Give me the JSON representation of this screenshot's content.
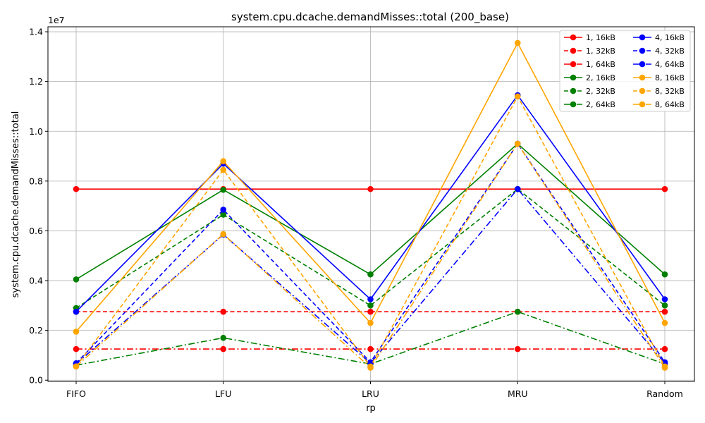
{
  "chart_data": {
    "type": "line",
    "title": "system.cpu.dcache.demandMisses::total (200_base)",
    "xlabel": "rp",
    "ylabel": "system.cpu.dcache.demandMisses::total",
    "scale_label": "1e7",
    "categories": [
      "FIFO",
      "LFU",
      "LRU",
      "MRU",
      "Random"
    ],
    "ylim": [
      -0.05,
      14.2
    ],
    "yticks": [
      0.0,
      0.2,
      0.4,
      0.6,
      0.8,
      1.0,
      1.2,
      1.4
    ],
    "yticks_units": [
      0,
      2,
      4,
      6,
      8,
      10,
      12,
      14
    ],
    "grid": true,
    "legend_position": "top-right",
    "legend_columns": 2,
    "series": [
      {
        "name": "1, 16kB",
        "color": "#ff0000",
        "dash": "solid",
        "values": [
          7.68,
          7.68,
          7.68,
          7.68,
          7.68
        ]
      },
      {
        "name": "1, 32kB",
        "color": "#ff0000",
        "dash": "dashed",
        "values": [
          2.75,
          2.75,
          2.75,
          2.75,
          2.75
        ]
      },
      {
        "name": "1, 64kB",
        "color": "#ff0000",
        "dash": "dashdot",
        "values": [
          1.25,
          1.25,
          1.25,
          1.25,
          1.25
        ]
      },
      {
        "name": "2, 16kB",
        "color": "#008000",
        "dash": "solid",
        "values": [
          4.05,
          7.65,
          4.25,
          9.5,
          4.25
        ]
      },
      {
        "name": "2, 32kB",
        "color": "#008000",
        "dash": "dashed",
        "values": [
          2.9,
          6.65,
          3.0,
          7.68,
          3.0
        ]
      },
      {
        "name": "2, 64kB",
        "color": "#008000",
        "dash": "dashdot",
        "values": [
          0.6,
          1.7,
          0.65,
          2.75,
          0.65
        ]
      },
      {
        "name": "4, 16kB",
        "color": "#0000ff",
        "dash": "solid",
        "values": [
          2.75,
          8.7,
          3.25,
          11.45,
          3.25
        ]
      },
      {
        "name": "4, 32kB",
        "color": "#0000ff",
        "dash": "dashed",
        "values": [
          0.68,
          6.85,
          0.72,
          9.5,
          0.72
        ]
      },
      {
        "name": "4, 64kB",
        "color": "#0000ff",
        "dash": "dashdot",
        "values": [
          0.65,
          5.85,
          0.68,
          7.68,
          0.68
        ]
      },
      {
        "name": "8, 16kB",
        "color": "#ffa500",
        "dash": "solid",
        "values": [
          1.95,
          8.8,
          2.3,
          13.55,
          2.3
        ]
      },
      {
        "name": "8, 32kB",
        "color": "#ffa500",
        "dash": "dashed",
        "values": [
          0.55,
          8.45,
          0.55,
          11.4,
          0.55
        ]
      },
      {
        "name": "8, 64kB",
        "color": "#ffa500",
        "dash": "dashdot",
        "values": [
          0.55,
          5.87,
          0.5,
          9.5,
          0.5
        ]
      }
    ]
  }
}
